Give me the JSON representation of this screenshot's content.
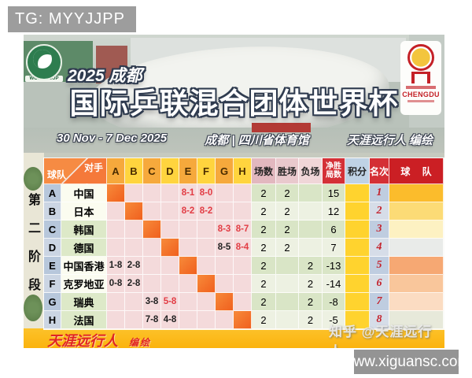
{
  "tg_banner": "TG: MYYJJPP",
  "poster": {
    "world_cup_logo": "WORLD CUP",
    "chengdu_logo": "CHENGDU",
    "subtitle": "2025 成都",
    "title": "国际乒联混合团体世界杯",
    "date_range": "30 Nov - 7 Dec  2025",
    "venue": "成都 | 四川省体育馆",
    "author_credit": "天涯远行人  编绘"
  },
  "stage_label": {
    "text": "第二阶段",
    "chars": [
      "第",
      "二",
      "阶",
      "段"
    ]
  },
  "table": {
    "corner_top": "对手",
    "corner_bottom": "球队",
    "opponents": [
      "A",
      "B",
      "C",
      "D",
      "E",
      "F",
      "G",
      "H"
    ],
    "headers": {
      "matches": "场数",
      "wins": "胜场",
      "losses": "负场",
      "net_line1": "净胜",
      "net_line2": "局数",
      "points": "积分",
      "rank": "名次",
      "team": "球 队"
    },
    "rows": [
      {
        "letter": "A",
        "team": "中国",
        "self": 0,
        "results": [
          {
            "col": 4,
            "text": "8-1",
            "red": true
          },
          {
            "col": 5,
            "text": "8-0",
            "red": true
          }
        ],
        "matches": "2",
        "wins": "2",
        "losses": "",
        "net": "15",
        "points": "",
        "rank": "1",
        "team_color": "#fbbc2c"
      },
      {
        "letter": "B",
        "team": "日本",
        "self": 1,
        "results": [
          {
            "col": 4,
            "text": "8-2",
            "red": true
          },
          {
            "col": 5,
            "text": "8-2",
            "red": true
          }
        ],
        "matches": "2",
        "wins": "2",
        "losses": "",
        "net": "12",
        "points": "",
        "rank": "2",
        "team_color": "#fcdb76"
      },
      {
        "letter": "C",
        "team": "韩国",
        "self": 2,
        "results": [
          {
            "col": 6,
            "text": "8-3",
            "red": true
          },
          {
            "col": 7,
            "text": "8-7",
            "red": true
          }
        ],
        "matches": "2",
        "wins": "2",
        "losses": "",
        "net": "6",
        "points": "",
        "rank": "3",
        "team_color": "#fdf1c2"
      },
      {
        "letter": "D",
        "team": "德国",
        "self": 3,
        "results": [
          {
            "col": 6,
            "text": "8-5",
            "red": false
          },
          {
            "col": 7,
            "text": "8-4",
            "red": true
          }
        ],
        "matches": "2",
        "wins": "2",
        "losses": "",
        "net": "7",
        "points": "",
        "rank": "4",
        "team_color": "#e9ebe9"
      },
      {
        "letter": "E",
        "team": "中国香港",
        "self": 4,
        "results": [
          {
            "col": 0,
            "text": "1-8",
            "red": false
          },
          {
            "col": 1,
            "text": "2-8",
            "red": false
          }
        ],
        "matches": "2",
        "wins": "",
        "losses": "2",
        "net": "-13",
        "points": "",
        "rank": "5",
        "team_color": "#f6a873"
      },
      {
        "letter": "F",
        "team": "克罗地亚",
        "self": 5,
        "results": [
          {
            "col": 0,
            "text": "0-8",
            "red": false
          },
          {
            "col": 1,
            "text": "2-8",
            "red": false
          }
        ],
        "matches": "2",
        "wins": "",
        "losses": "2",
        "net": "-14",
        "points": "",
        "rank": "6",
        "team_color": "#f9c69b"
      },
      {
        "letter": "G",
        "team": "瑞典",
        "self": 6,
        "results": [
          {
            "col": 2,
            "text": "3-8",
            "red": false
          },
          {
            "col": 3,
            "text": "5-8",
            "red": true
          }
        ],
        "matches": "2",
        "wins": "",
        "losses": "2",
        "net": "-8",
        "points": "",
        "rank": "7",
        "team_color": "#fbdcc2"
      },
      {
        "letter": "H",
        "team": "法国",
        "self": 7,
        "results": [
          {
            "col": 2,
            "text": "7-8",
            "red": false
          },
          {
            "col": 3,
            "text": "4-8",
            "red": false
          }
        ],
        "matches": "2",
        "wins": "",
        "losses": "2",
        "net": "-5",
        "points": "",
        "rank": "8",
        "team_color": "#e7e9da"
      }
    ]
  },
  "footer": {
    "credit_name": "天涯远行人",
    "credit_label": "编绘",
    "watermark": "知乎 @天涯远行人",
    "website": "www.xiguansc.com"
  },
  "colors": {
    "diagonal_orange": "#f0601e",
    "result_red": "#e23c44",
    "points_yellow": "#ffd32e",
    "rank_number_red": "#c4242e",
    "footer_bar_yellow": "#fbb30e"
  }
}
